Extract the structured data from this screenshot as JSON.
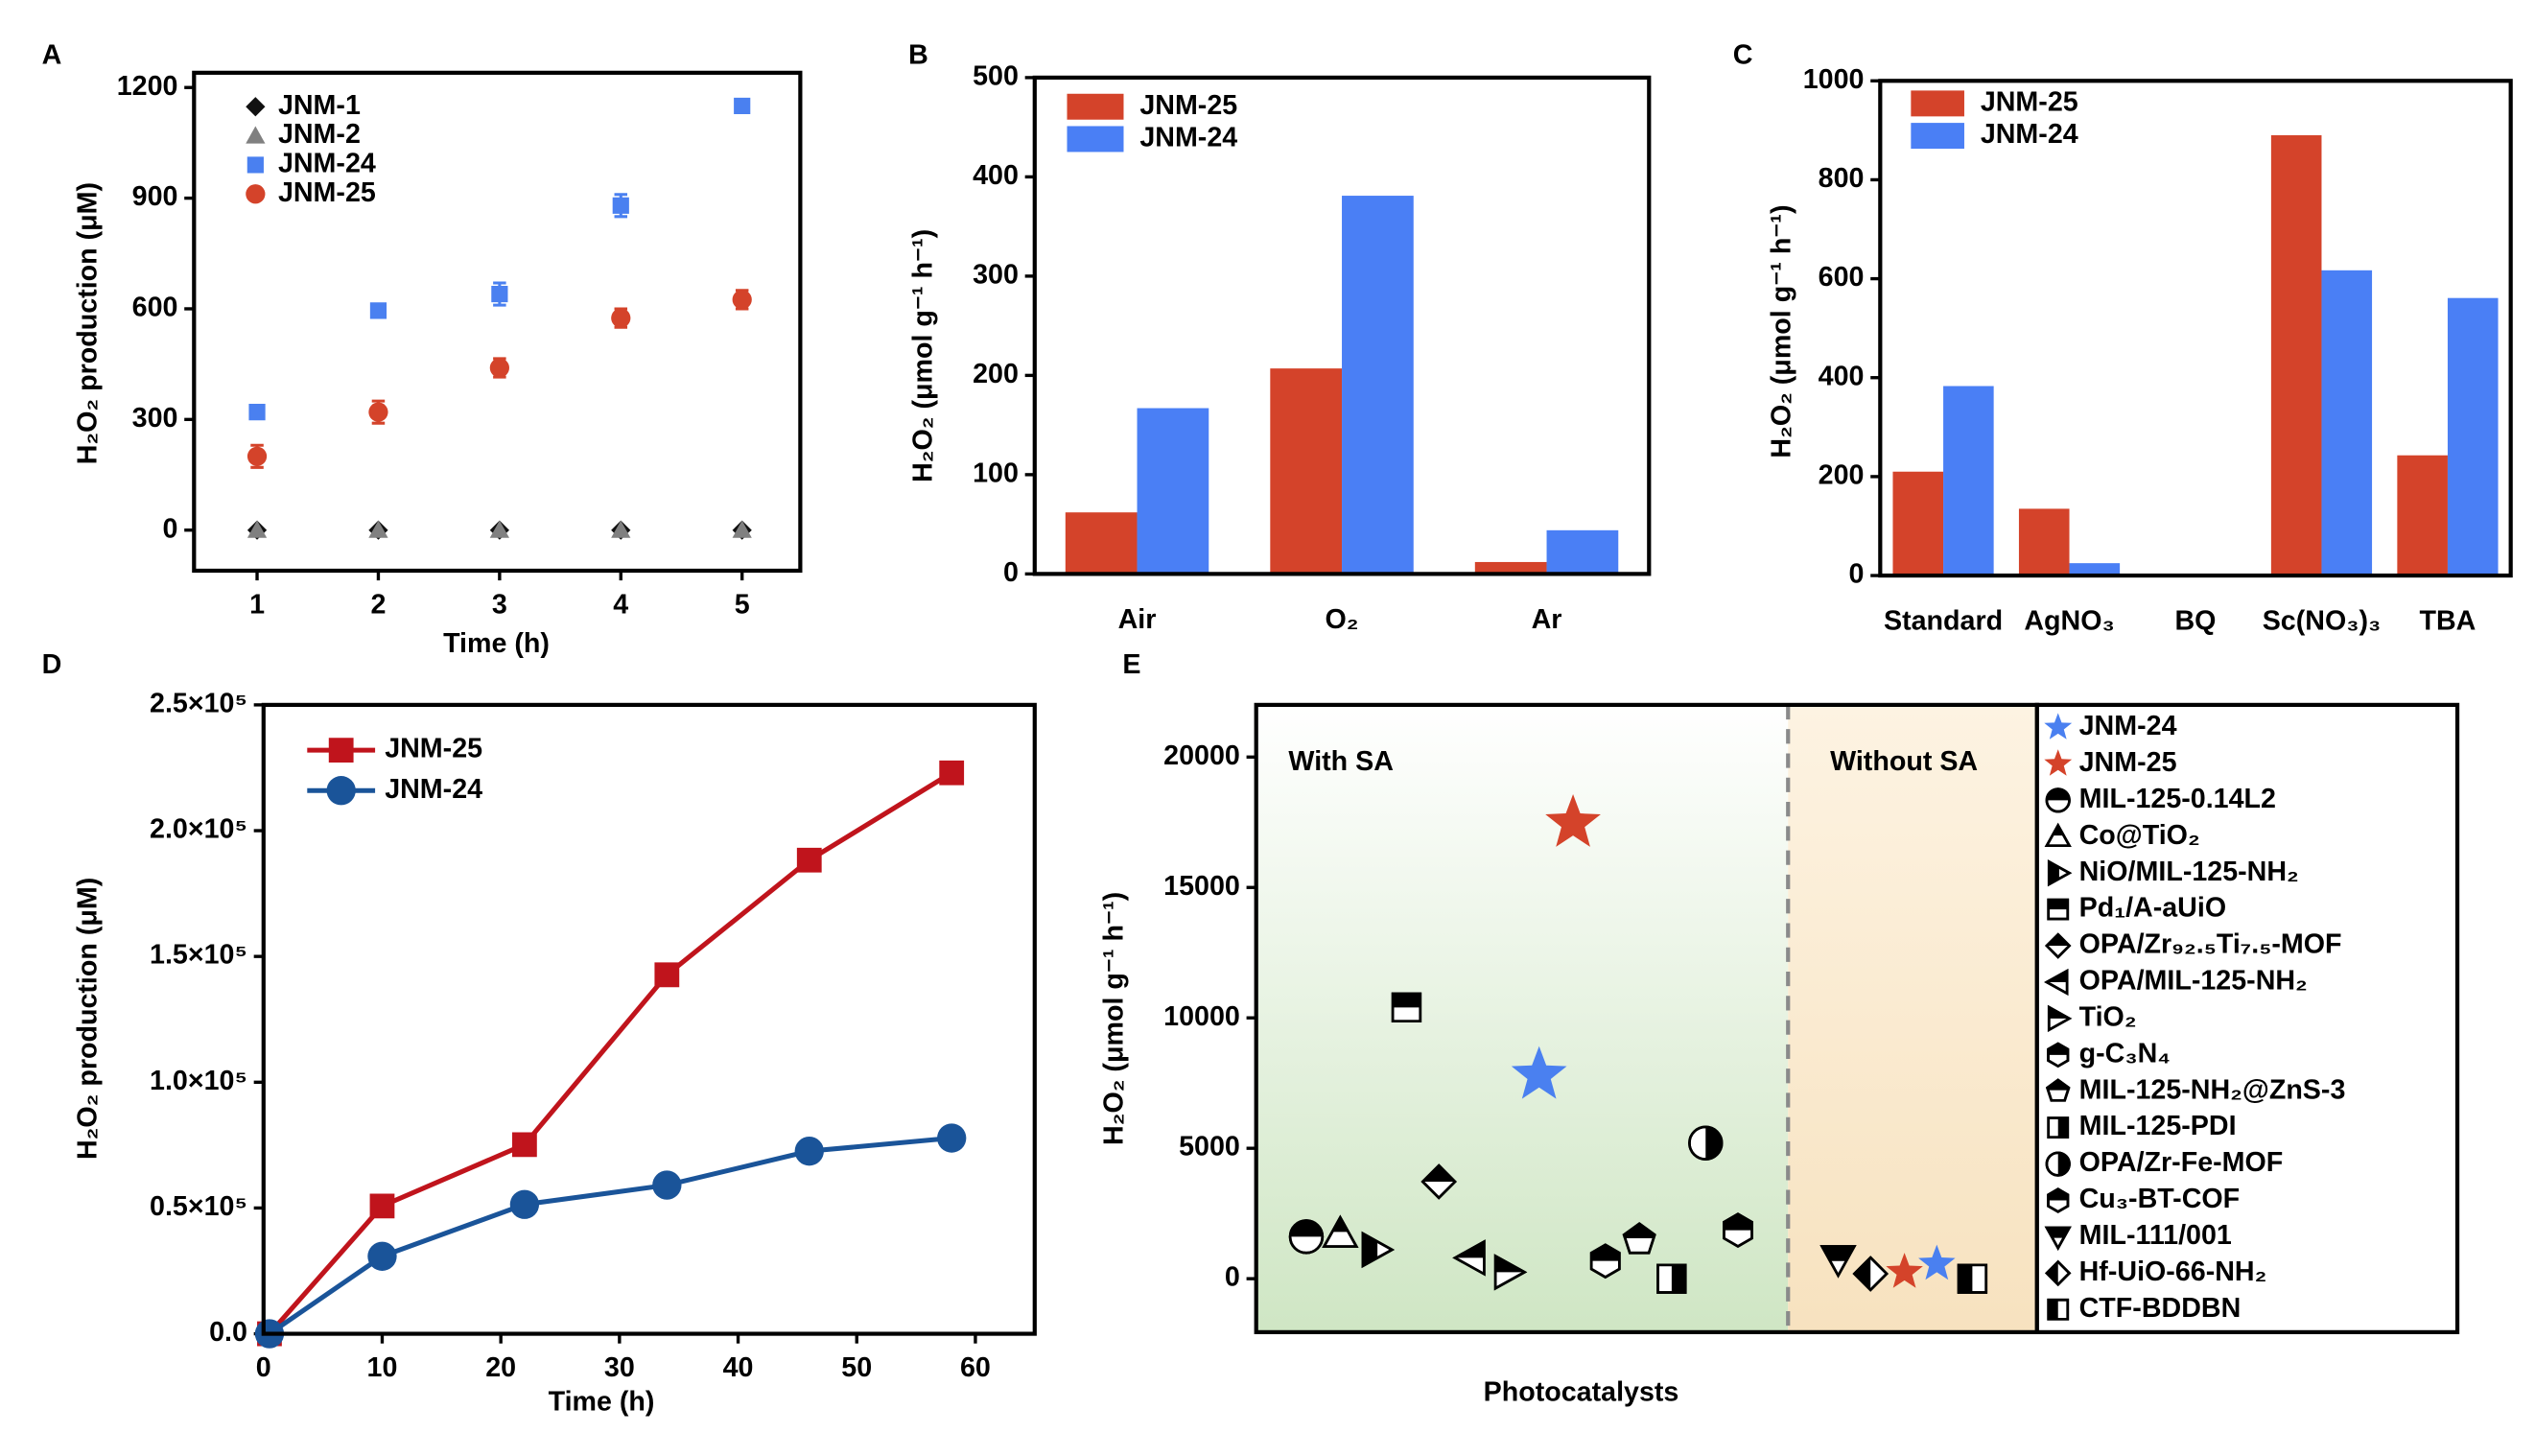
{
  "chart_data": [
    {
      "type": "scatter",
      "label": "A",
      "xlabel": "Time (h)",
      "ylabel": "H₂O₂ production (μM)",
      "x": [
        1,
        2,
        3,
        4,
        5
      ],
      "xlim": [
        0.48,
        5.48
      ],
      "xticks": [
        1,
        2,
        3,
        4,
        5
      ],
      "ylim": [
        -110,
        1240
      ],
      "yticks": [
        0,
        300,
        600,
        900,
        1200
      ],
      "series": [
        {
          "name": "JNM-1",
          "color": "#111111",
          "marker": "diamond",
          "values": [
            0,
            0,
            0,
            0,
            0
          ]
        },
        {
          "name": "JNM-2",
          "color": "#808080",
          "marker": "triangle-up",
          "values": [
            0,
            0,
            0,
            0,
            0
          ]
        },
        {
          "name": "JNM-24",
          "color": "#4a80f0",
          "marker": "square",
          "values": [
            320,
            595,
            640,
            880,
            1150
          ],
          "errors": [
            12,
            15,
            30,
            30,
            15
          ]
        },
        {
          "name": "JNM-25",
          "color": "#d4432a",
          "marker": "circle",
          "values": [
            200,
            320,
            440,
            575,
            625
          ],
          "errors": [
            30,
            30,
            25,
            25,
            25
          ]
        }
      ]
    },
    {
      "type": "bar",
      "label": "B",
      "ylabel": "H₂O₂ (μmol g⁻¹ h⁻¹)",
      "categories": [
        "Air",
        "O₂",
        "Ar"
      ],
      "ylim": [
        0,
        500
      ],
      "yticks": [
        0,
        100,
        200,
        300,
        400,
        500
      ],
      "series": [
        {
          "name": "JNM-25",
          "color": "#d4432a",
          "values": [
            62,
            207,
            12
          ]
        },
        {
          "name": "JNM-24",
          "color": "#4a7ff5",
          "values": [
            167,
            381,
            44
          ]
        }
      ]
    },
    {
      "type": "bar",
      "label": "C",
      "ylabel": "H₂O₂ (μmol g⁻¹ h⁻¹)",
      "categories": [
        "Standard",
        "AgNO₃",
        "BQ",
        "Sc(NO₃)₃",
        "TBA"
      ],
      "ylim": [
        0,
        1000
      ],
      "yticks": [
        0,
        200,
        400,
        600,
        800,
        1000
      ],
      "series": [
        {
          "name": "JNM-25",
          "color": "#d4432a",
          "values": [
            210,
            135,
            0,
            890,
            243
          ]
        },
        {
          "name": "JNM-24",
          "color": "#4a7ff5",
          "values": [
            383,
            25,
            0,
            617,
            561
          ]
        }
      ]
    },
    {
      "type": "line",
      "label": "D",
      "xlabel": "Time (h)",
      "ylabel": "H₂O₂ production (μM)",
      "x": [
        0.5,
        10,
        22,
        34,
        46,
        58
      ],
      "xlim": [
        0,
        65
      ],
      "xticks": [
        0,
        10,
        20,
        30,
        40,
        50,
        60
      ],
      "ylim": [
        0,
        250000
      ],
      "yticks": [
        {
          "value": 0,
          "label": "0.0"
        },
        {
          "value": 50000,
          "label": "0.5×10⁵"
        },
        {
          "value": 100000,
          "label": "1.0×10⁵"
        },
        {
          "value": 150000,
          "label": "1.5×10⁵"
        },
        {
          "value": 200000,
          "label": "2.0×10⁵"
        },
        {
          "value": 250000,
          "label": "2.5×10⁵"
        }
      ],
      "series": [
        {
          "name": "JNM-25",
          "color": "#c0141c",
          "marker": "square",
          "values": [
            0,
            50800,
            75200,
            142700,
            188300,
            223000
          ]
        },
        {
          "name": "JNM-24",
          "color": "#1a5499",
          "marker": "circle",
          "values": [
            0,
            30800,
            51400,
            59100,
            72600,
            77800
          ]
        }
      ]
    },
    {
      "type": "scatter",
      "label": "E",
      "xlabel": "Photocatalysts",
      "ylabel": "H₂O₂ (μmol g⁻¹ h⁻¹)",
      "annotations": [
        "With SA",
        "Without SA"
      ],
      "ylim": [
        -2050,
        22000
      ],
      "yticks": [
        0,
        5000,
        10000,
        15000,
        20000
      ],
      "series": [
        {
          "name": "JNM-24",
          "color": "#4a80f0",
          "marker": "star",
          "values": [
            7800,
            560
          ]
        },
        {
          "name": "JNM-25",
          "color": "#d4432a",
          "marker": "star",
          "values": [
            17460,
            250
          ]
        },
        {
          "name": "MIL-125-0.14L2",
          "color": "#000000",
          "marker": "circle",
          "half": "top",
          "values": [
            1610
          ]
        },
        {
          "name": "Co@TiO₂",
          "color": "#000000",
          "marker": "triangle-up",
          "half": "top",
          "values": [
            1730
          ]
        },
        {
          "name": "NiO/MIL-125-NH₂",
          "color": "#000000",
          "marker": "triangle-right",
          "half": "left",
          "values": [
            1110
          ]
        },
        {
          "name": "Pd₁/A-aUiO",
          "color": "#000000",
          "marker": "square",
          "half": "top",
          "values": [
            10400
          ]
        },
        {
          "name": "OPA/Zr₉₂.₅Ti₇.₅-MOF",
          "color": "#000000",
          "marker": "diamond",
          "half": "top",
          "values": [
            3720
          ]
        },
        {
          "name": "OPA/MIL-125-NH₂",
          "color": "#000000",
          "marker": "triangle-left",
          "half": "top",
          "values": [
            800
          ]
        },
        {
          "name": "TiO₂",
          "color": "#000000",
          "marker": "triangle-right",
          "half": "top",
          "values": [
            250
          ]
        },
        {
          "name": "g-C₃N₄",
          "color": "#000000",
          "marker": "hexagon",
          "half": "top",
          "values": [
            680
          ]
        },
        {
          "name": "MIL-125-NH₂@ZnS-3",
          "color": "#000000",
          "marker": "pentagon",
          "half": "top",
          "values": [
            1490
          ]
        },
        {
          "name": "MIL-125-PDI",
          "color": "#000000",
          "marker": "square",
          "half": "right",
          "values": [
            0
          ]
        },
        {
          "name": "OPA/Zr-Fe-MOF",
          "color": "#000000",
          "marker": "circle",
          "half": "right",
          "values": [
            5200
          ]
        },
        {
          "name": "Cu₃-BT-COF",
          "color": "#000000",
          "marker": "hexagon",
          "half": "top",
          "values": [
            1860
          ]
        },
        {
          "name": "MIL-111/001",
          "color": "#000000",
          "marker": "triangle-down",
          "half": "top",
          "values": [
            740
          ]
        },
        {
          "name": "Hf-UiO-66-NH₂",
          "color": "#000000",
          "marker": "diamond",
          "half": "left",
          "values": [
            190
          ]
        },
        {
          "name": "CTF-BDDBN",
          "color": "#000000",
          "marker": "square",
          "half": "left",
          "values": [
            0
          ]
        }
      ]
    }
  ]
}
